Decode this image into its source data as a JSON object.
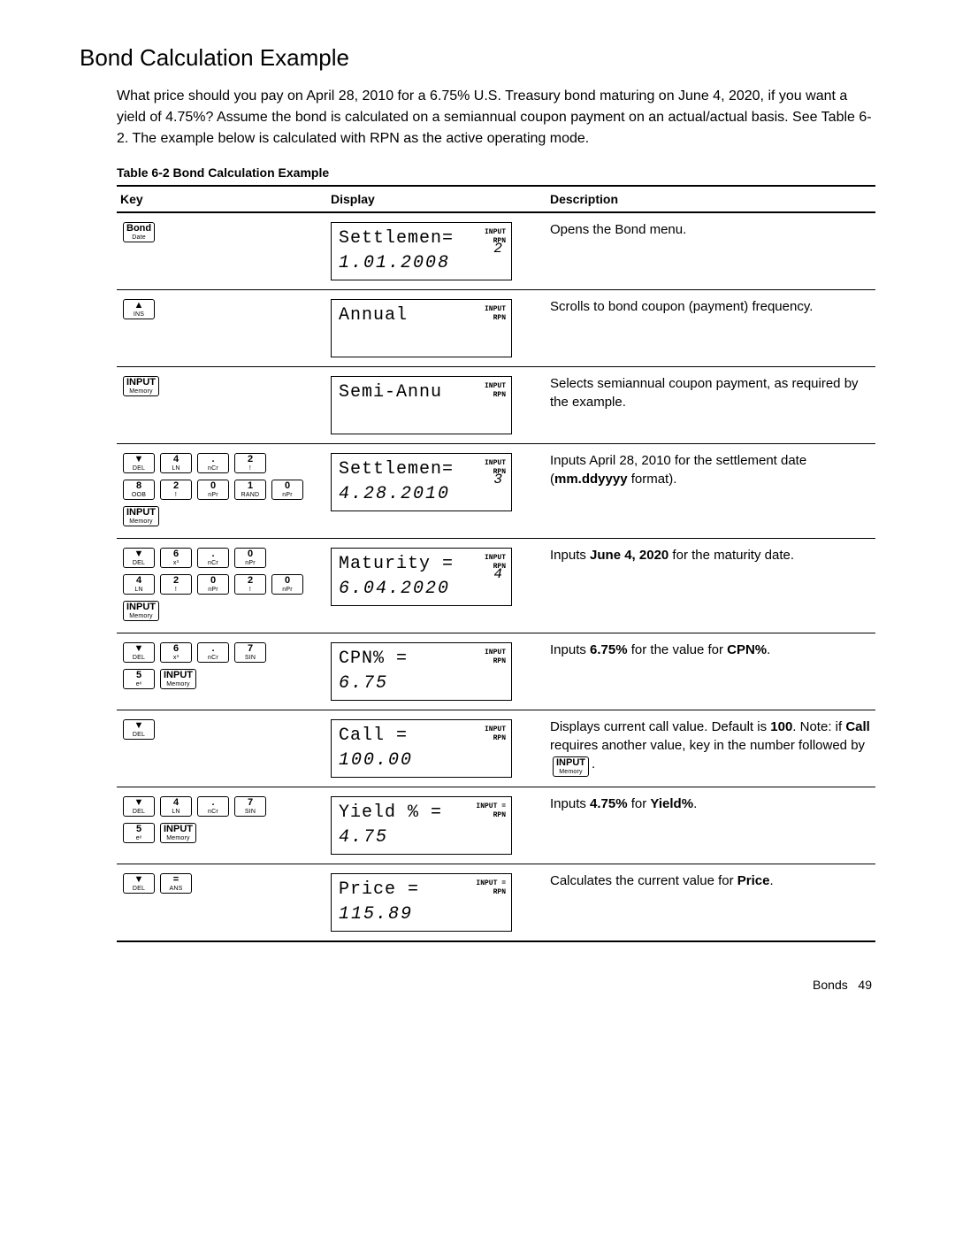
{
  "heading": "Bond Calculation Example",
  "intro": "What price should you pay on April 28, 2010 for a 6.75% U.S. Treasury bond maturing on June 4, 2020, if you want a yield of 4.75%? Assume the bond is calculated on a semiannual coupon payment on an actual/actual basis. See Table 6-2. The example below is calculated with RPN as the active operating mode.",
  "table_caption": "Table 6-2  Bond Calculation Example",
  "columns": {
    "key": "Key",
    "display": "Display",
    "description": "Description"
  },
  "screen_input_tag": "INPUT",
  "screen_rpn_tag": "RPN",
  "screen_inputeq_tag": "INPUT =",
  "rows": [
    {
      "keys": [
        {
          "top": "Bond",
          "bot": "Date"
        }
      ],
      "screen": {
        "l1": "Settlemen=",
        "l2": "1.01.2008",
        "tag": "INPUT\nRPN",
        "rnum": "2"
      },
      "desc_html": "Opens the Bond menu."
    },
    {
      "keys": [
        {
          "top": "▲",
          "bot": "INS"
        }
      ],
      "screen": {
        "l1": "Annual",
        "l2": "",
        "tag": "INPUT\nRPN",
        "rnum": ""
      },
      "desc_html": "Scrolls to bond coupon (payment) frequency."
    },
    {
      "keys": [
        {
          "top": "INPUT",
          "bot": "Memory"
        }
      ],
      "screen": {
        "l1": "Semi-Annu",
        "l2": "",
        "tag": "INPUT\nRPN",
        "rnum": ""
      },
      "desc_html": "Selects semiannual coupon payment, as required by the example."
    },
    {
      "keys": [
        {
          "top": "▼",
          "bot": "DEL"
        },
        {
          "top": "4",
          "bot": "LN"
        },
        {
          "top": ".",
          "bot": "nCr"
        },
        {
          "top": "2",
          "bot": "!"
        },
        "br",
        {
          "top": "8",
          "bot": "OOB"
        },
        {
          "top": "2",
          "bot": "!"
        },
        {
          "top": "0",
          "bot": "nPr"
        },
        {
          "top": "1",
          "bot": "RAND"
        },
        {
          "top": "0",
          "bot": "nPr"
        },
        "br",
        {
          "top": "INPUT",
          "bot": "Memory"
        }
      ],
      "screen": {
        "l1": "Settlemen=",
        "l2": "4.28.2010",
        "tag": "INPUT\nRPN",
        "rnum": "3"
      },
      "desc_html": "Inputs April 28, 2010 for the settlement date (<b>mm.ddyyyy</b> format)."
    },
    {
      "keys": [
        {
          "top": "▼",
          "bot": "DEL"
        },
        {
          "top": "6",
          "bot": "x³"
        },
        {
          "top": ".",
          "bot": "nCr"
        },
        {
          "top": "0",
          "bot": "nPr"
        },
        "br",
        {
          "top": "4",
          "bot": "LN"
        },
        {
          "top": "2",
          "bot": "!"
        },
        {
          "top": "0",
          "bot": "nPr"
        },
        {
          "top": "2",
          "bot": "!"
        },
        {
          "top": "0",
          "bot": "nPr"
        },
        "br",
        {
          "top": "INPUT",
          "bot": "Memory"
        }
      ],
      "screen": {
        "l1": "Maturity  =",
        "l2": "6.04.2020",
        "tag": "INPUT\nRPN",
        "rnum": "4"
      },
      "desc_html": "Inputs <b>June 4, 2020</b> for the maturity date."
    },
    {
      "keys": [
        {
          "top": "▼",
          "bot": "DEL"
        },
        {
          "top": "6",
          "bot": "x³"
        },
        {
          "top": ".",
          "bot": "nCr"
        },
        {
          "top": "7",
          "bot": "SIN"
        },
        "br",
        {
          "top": "5",
          "bot": "eˣ"
        },
        {
          "top": "INPUT",
          "bot": "Memory"
        }
      ],
      "screen": {
        "l1": "CPN%      =",
        "l2": "6.75",
        "tag": "INPUT\nRPN",
        "rnum": ""
      },
      "desc_html": "Inputs <b>6.75%</b> for the value for <b>CPN%</b>."
    },
    {
      "keys": [
        {
          "top": "▼",
          "bot": "DEL"
        }
      ],
      "screen": {
        "l1": "Call      =",
        "l2": "100.00",
        "tag": "INPUT\nRPN",
        "rnum": ""
      },
      "desc_html": "Displays current call value. Default is <b>100</b>. Note: if <b>Call</b> requires another value, key in the number followed by <span class=\"key\" data-name=\"input-key-inline\" data-interactable=\"false\"><span class=\"top\">INPUT</span><span class=\"bot\">Memory</span></span>."
    },
    {
      "keys": [
        {
          "top": "▼",
          "bot": "DEL"
        },
        {
          "top": "4",
          "bot": "LN"
        },
        {
          "top": ".",
          "bot": "nCr"
        },
        {
          "top": "7",
          "bot": "SIN"
        },
        "br",
        {
          "top": "5",
          "bot": "eˣ"
        },
        {
          "top": "INPUT",
          "bot": "Memory"
        }
      ],
      "screen": {
        "l1": "Yield %   =",
        "l2": "4.75",
        "tag": "INPUT =\nRPN",
        "rnum": ""
      },
      "desc_html": "Inputs <b>4.75%</b> for <b>Yield%</b>."
    },
    {
      "keys": [
        {
          "top": "▼",
          "bot": "DEL"
        },
        {
          "top": "=",
          "bot": "ANS"
        }
      ],
      "screen": {
        "l1": "Price     =",
        "l2": "115.89",
        "tag": "INPUT =\nRPN",
        "rnum": ""
      },
      "desc_html": "Calculates the current value for <b>Price</b>."
    }
  ],
  "footer_section": "Bonds",
  "footer_page": "49"
}
